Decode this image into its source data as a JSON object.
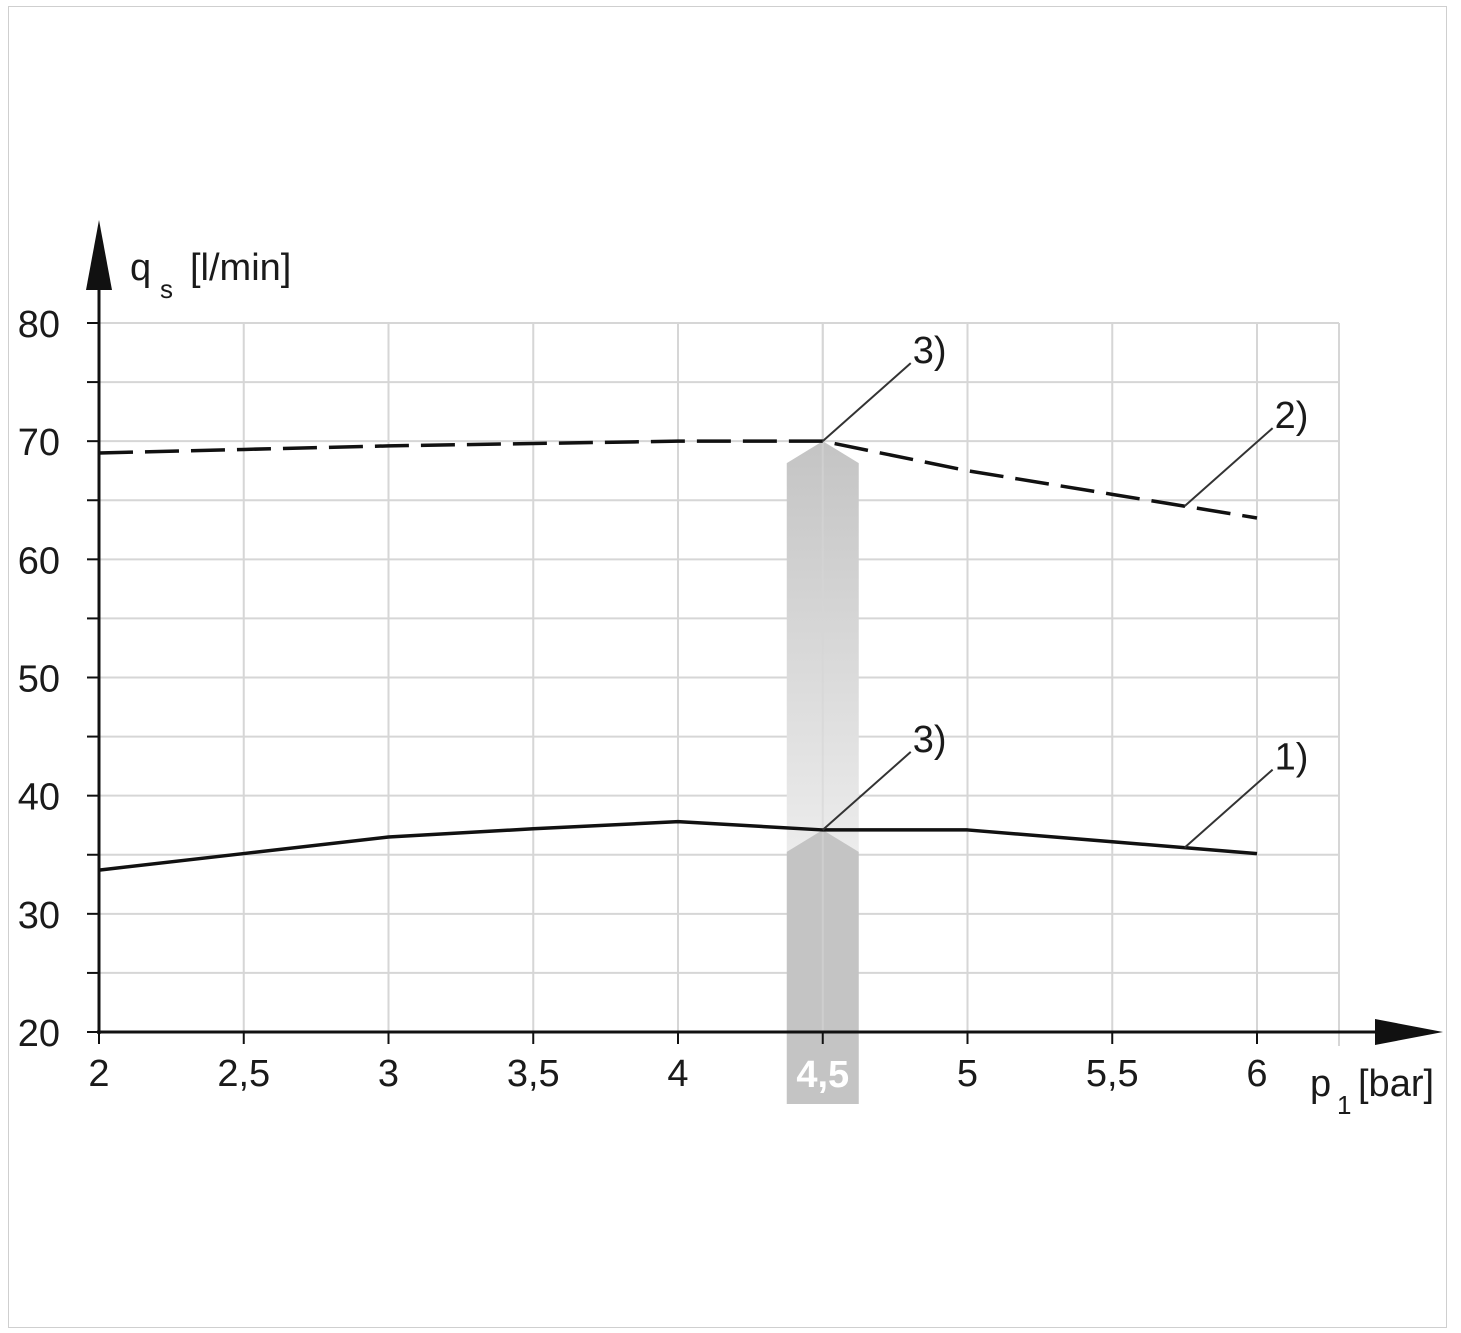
{
  "chart_data": {
    "type": "line",
    "title": "",
    "xlabel": "p",
    "xlabel_sub": "1",
    "xlabel_unit": "[bar]",
    "ylabel": "q",
    "ylabel_sub": "s",
    "ylabel_unit": "[l/min]",
    "xlim": [
      2,
      6.3
    ],
    "ylim": [
      20,
      80
    ],
    "x_ticks": [
      2,
      2.5,
      3,
      3.5,
      4,
      4.5,
      5,
      5.5,
      6
    ],
    "x_tick_labels": [
      "2",
      "2,5",
      "3",
      "3,5",
      "4",
      "4,5",
      "5",
      "5,5",
      "6"
    ],
    "y_ticks": [
      20,
      30,
      40,
      50,
      60,
      70,
      80
    ],
    "y_tick_labels": [
      "20",
      "30",
      "40",
      "50",
      "60",
      "70",
      "80"
    ],
    "y_minor_step": 5,
    "grid": true,
    "series": [
      {
        "name": "1)",
        "style": "solid",
        "color": "#111111",
        "x": [
          2,
          2.5,
          3,
          3.5,
          4,
          4.5,
          5,
          5.5,
          6
        ],
        "y": [
          33.7,
          35.1,
          36.5,
          37.2,
          37.8,
          37.1,
          37.1,
          36.1,
          35.1
        ]
      },
      {
        "name": "2)",
        "style": "dashed",
        "color": "#111111",
        "x": [
          2,
          2.5,
          3,
          3.5,
          4,
          4.5,
          5,
          5.5,
          6
        ],
        "y": [
          69.0,
          69.3,
          69.6,
          69.8,
          70.0,
          70.0,
          67.5,
          65.5,
          63.5
        ]
      }
    ],
    "highlight": {
      "x": 4.5,
      "label": "4,5",
      "color": "#c4c4c4"
    },
    "callouts": [
      {
        "label": "3)",
        "series": 1,
        "x": 4.5
      },
      {
        "label": "2)",
        "series": 1,
        "x": 5.75
      },
      {
        "label": "3)",
        "series": 0,
        "x": 4.5
      },
      {
        "label": "1)",
        "series": 0,
        "x": 5.75
      }
    ]
  }
}
